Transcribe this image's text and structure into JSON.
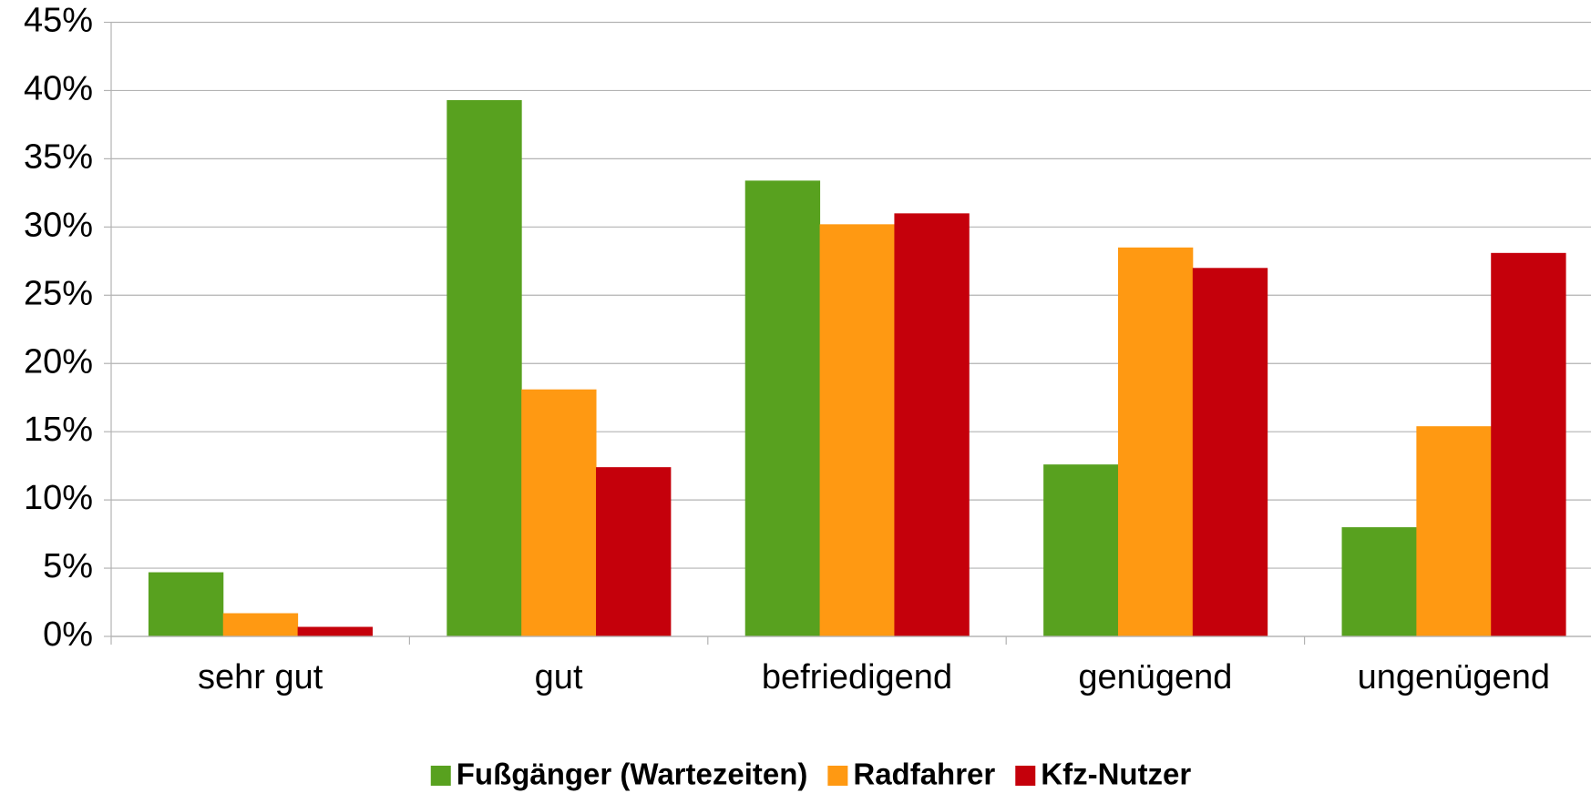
{
  "chart_data": {
    "type": "bar",
    "categories": [
      "sehr gut",
      "gut",
      "befriedigend",
      "genügend",
      "ungenügend"
    ],
    "series": [
      {
        "name": "Fußgänger (Wartezeiten)",
        "color": "#58a11f",
        "values": [
          4.7,
          39.3,
          33.4,
          12.6,
          8.0
        ]
      },
      {
        "name": "Radfahrer",
        "color": "#ff9912",
        "values": [
          1.7,
          18.1,
          30.2,
          28.5,
          15.4
        ]
      },
      {
        "name": "Kfz-Nutzer",
        "color": "#c5000b",
        "values": [
          0.7,
          12.4,
          31.0,
          27.0,
          28.1
        ]
      }
    ],
    "ylim": [
      0,
      45
    ],
    "yticks": [
      {
        "value": 0,
        "label": "0%"
      },
      {
        "value": 5,
        "label": "5%"
      },
      {
        "value": 10,
        "label": "10%"
      },
      {
        "value": 15,
        "label": "15%"
      },
      {
        "value": 20,
        "label": "20%"
      },
      {
        "value": 25,
        "label": "25%"
      },
      {
        "value": 30,
        "label": "30%"
      },
      {
        "value": 35,
        "label": "35%"
      },
      {
        "value": 40,
        "label": "40%"
      },
      {
        "value": 45,
        "label": "45%"
      }
    ],
    "grid": true,
    "legend": "bottom"
  }
}
